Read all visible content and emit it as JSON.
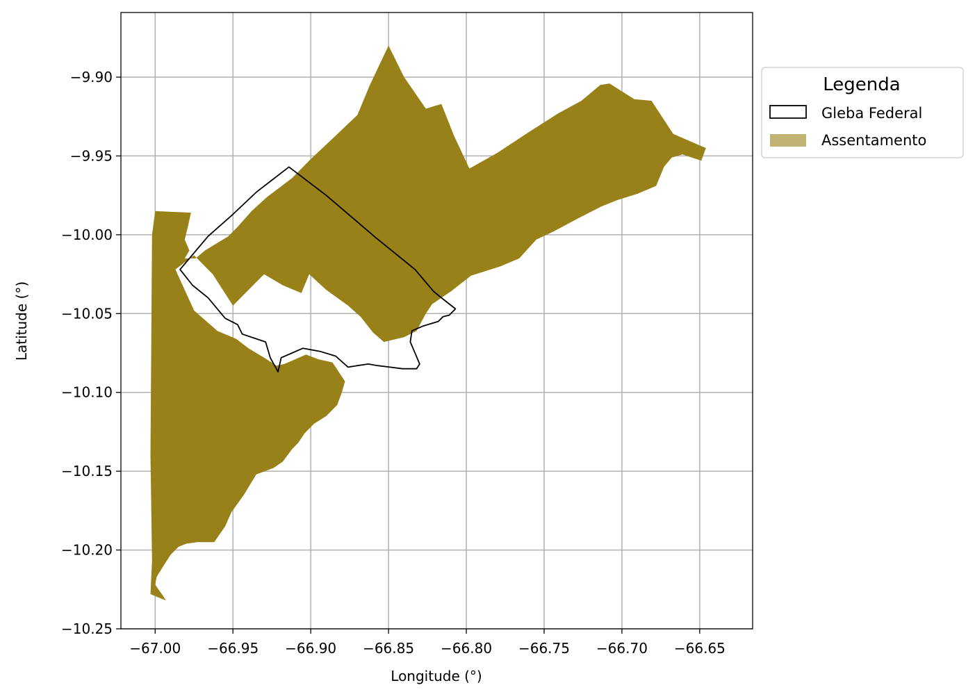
{
  "chart_data": {
    "type": "map",
    "xlabel": "Longitude (°)",
    "ylabel": "Latitude (°)",
    "xlim": [
      -67.022,
      -66.616
    ],
    "ylim": [
      -10.25,
      -9.859
    ],
    "xticks": [
      -67.0,
      -66.95,
      -66.9,
      -66.85,
      -66.8,
      -66.75,
      -66.7,
      -66.65
    ],
    "yticks": [
      -9.9,
      -9.95,
      -10.0,
      -10.05,
      -10.1,
      -10.15,
      -10.2,
      -10.25
    ],
    "x_tick_labels": [
      "−67.00",
      "−66.95",
      "−66.90",
      "−66.85",
      "−66.80",
      "−66.75",
      "−66.70",
      "−66.65"
    ],
    "y_tick_labels": [
      "−9.90",
      "−9.95",
      "−10.00",
      "−10.05",
      "−10.10",
      "−10.15",
      "−10.20",
      "−10.25"
    ],
    "grid": true,
    "legend": {
      "title": "Legenda",
      "placement": "outside-right-top",
      "entries": [
        {
          "label": "Gleba Federal",
          "style": "outline",
          "edge_color": "#000000",
          "fill": "none"
        },
        {
          "label": "Assentamento",
          "style": "filled",
          "color": "#988118"
        }
      ]
    },
    "layers": [
      {
        "name": "Assentamento",
        "color": "#988118",
        "rings": [
          [
            [
              -67.0,
              -9.985
            ],
            [
              -66.977,
              -9.986
            ],
            [
              -66.979,
              -9.995
            ],
            [
              -66.981,
              -10.003
            ],
            [
              -66.978,
              -10.01
            ],
            [
              -66.981,
              -10.015
            ],
            [
              -66.974,
              -10.015
            ],
            [
              -66.968,
              -10.01
            ],
            [
              -66.953,
              -10.001
            ],
            [
              -66.947,
              -9.995
            ],
            [
              -66.938,
              -9.985
            ],
            [
              -66.928,
              -9.976
            ],
            [
              -66.912,
              -9.964
            ],
            [
              -66.9,
              -9.952
            ],
            [
              -66.886,
              -9.939
            ],
            [
              -66.87,
              -9.924
            ],
            [
              -66.862,
              -9.905
            ],
            [
              -66.85,
              -9.88
            ],
            [
              -66.84,
              -9.9
            ],
            [
              -66.826,
              -9.92
            ],
            [
              -66.816,
              -9.917
            ],
            [
              -66.808,
              -9.937
            ],
            [
              -66.798,
              -9.958
            ],
            [
              -66.78,
              -9.948
            ],
            [
              -66.76,
              -9.935
            ],
            [
              -66.741,
              -9.923
            ],
            [
              -66.726,
              -9.915
            ],
            [
              -66.714,
              -9.905
            ],
            [
              -66.708,
              -9.904
            ],
            [
              -66.692,
              -9.914
            ],
            [
              -66.681,
              -9.915
            ],
            [
              -66.667,
              -9.936
            ],
            [
              -66.646,
              -9.945
            ],
            [
              -66.649,
              -9.953
            ],
            [
              -66.661,
              -9.949
            ],
            [
              -66.668,
              -9.951
            ],
            [
              -66.673,
              -9.957
            ],
            [
              -66.678,
              -9.969
            ],
            [
              -66.69,
              -9.974
            ],
            [
              -66.703,
              -9.978
            ],
            [
              -66.713,
              -9.982
            ],
            [
              -66.727,
              -9.989
            ],
            [
              -66.744,
              -9.998
            ],
            [
              -66.755,
              -10.003
            ],
            [
              -66.766,
              -10.015
            ],
            [
              -66.778,
              -10.02
            ],
            [
              -66.797,
              -10.026
            ],
            [
              -66.81,
              -10.036
            ],
            [
              -66.822,
              -10.044
            ],
            [
              -66.826,
              -10.05
            ],
            [
              -66.832,
              -10.061
            ],
            [
              -66.84,
              -10.065
            ],
            [
              -66.853,
              -10.068
            ],
            [
              -66.86,
              -10.062
            ],
            [
              -66.868,
              -10.052
            ],
            [
              -66.876,
              -10.045
            ],
            [
              -66.89,
              -10.035
            ],
            [
              -66.901,
              -10.025
            ],
            [
              -66.906,
              -10.037
            ],
            [
              -66.918,
              -10.032
            ],
            [
              -66.93,
              -10.025
            ],
            [
              -66.94,
              -10.035
            ],
            [
              -66.95,
              -10.045
            ],
            [
              -66.963,
              -10.025
            ],
            [
              -66.975,
              -10.013
            ],
            [
              -66.987,
              -10.022
            ],
            [
              -66.975,
              -10.048
            ],
            [
              -66.96,
              -10.061
            ],
            [
              -66.948,
              -10.066
            ],
            [
              -66.94,
              -10.072
            ],
            [
              -66.93,
              -10.078
            ],
            [
              -66.922,
              -10.083
            ],
            [
              -66.917,
              -10.082
            ],
            [
              -66.91,
              -10.079
            ],
            [
              -66.903,
              -10.076
            ],
            [
              -66.895,
              -10.079
            ],
            [
              -66.886,
              -10.081
            ],
            [
              -66.878,
              -10.093
            ],
            [
              -66.88,
              -10.1
            ],
            [
              -66.883,
              -10.108
            ],
            [
              -66.89,
              -10.115
            ],
            [
              -66.898,
              -10.12
            ],
            [
              -66.904,
              -10.126
            ],
            [
              -66.908,
              -10.132
            ],
            [
              -66.912,
              -10.136
            ],
            [
              -66.918,
              -10.144
            ],
            [
              -66.924,
              -10.148
            ],
            [
              -66.935,
              -10.152
            ],
            [
              -66.943,
              -10.165
            ],
            [
              -66.951,
              -10.176
            ],
            [
              -66.955,
              -10.185
            ],
            [
              -66.962,
              -10.195
            ],
            [
              -66.973,
              -10.195
            ],
            [
              -66.98,
              -10.196
            ],
            [
              -66.985,
              -10.198
            ],
            [
              -66.99,
              -10.203
            ],
            [
              -66.994,
              -10.209
            ],
            [
              -66.999,
              -10.217
            ],
            [
              -67.0,
              -10.222
            ],
            [
              -66.995,
              -10.229
            ],
            [
              -66.993,
              -10.232
            ],
            [
              -67.003,
              -10.228
            ],
            [
              -67.002,
              -10.207
            ],
            [
              -67.003,
              -10.14
            ],
            [
              -67.002,
              -10.0
            ]
          ]
        ]
      },
      {
        "name": "Gleba Federal",
        "color": "#000000",
        "rings": [
          [
            [
              -66.984,
              -10.022
            ],
            [
              -66.966,
              -10.001
            ],
            [
              -66.95,
              -9.987
            ],
            [
              -66.935,
              -9.973
            ],
            [
              -66.914,
              -9.957
            ],
            [
              -66.89,
              -9.975
            ],
            [
              -66.858,
              -10.002
            ],
            [
              -66.833,
              -10.022
            ],
            [
              -66.821,
              -10.036
            ],
            [
              -66.816,
              -10.04
            ],
            [
              -66.807,
              -10.047
            ],
            [
              -66.811,
              -10.051
            ],
            [
              -66.815,
              -10.052
            ],
            [
              -66.818,
              -10.055
            ],
            [
              -66.828,
              -10.058
            ],
            [
              -66.835,
              -10.061
            ],
            [
              -66.836,
              -10.068
            ],
            [
              -66.833,
              -10.075
            ],
            [
              -66.83,
              -10.082
            ],
            [
              -66.832,
              -10.085
            ],
            [
              -66.841,
              -10.085
            ],
            [
              -66.849,
              -10.084
            ],
            [
              -66.857,
              -10.083
            ],
            [
              -66.863,
              -10.082
            ],
            [
              -66.87,
              -10.083
            ],
            [
              -66.876,
              -10.084
            ],
            [
              -66.884,
              -10.077
            ],
            [
              -66.894,
              -10.074
            ],
            [
              -66.905,
              -10.072
            ],
            [
              -66.912,
              -10.075
            ],
            [
              -66.919,
              -10.078
            ],
            [
              -66.921,
              -10.087
            ],
            [
              -66.926,
              -10.078
            ],
            [
              -66.929,
              -10.068
            ],
            [
              -66.935,
              -10.066
            ],
            [
              -66.944,
              -10.063
            ],
            [
              -66.947,
              -10.057
            ],
            [
              -66.955,
              -10.053
            ],
            [
              -66.966,
              -10.04
            ],
            [
              -66.976,
              -10.032
            ],
            [
              -66.984,
              -10.022
            ]
          ]
        ]
      }
    ]
  }
}
